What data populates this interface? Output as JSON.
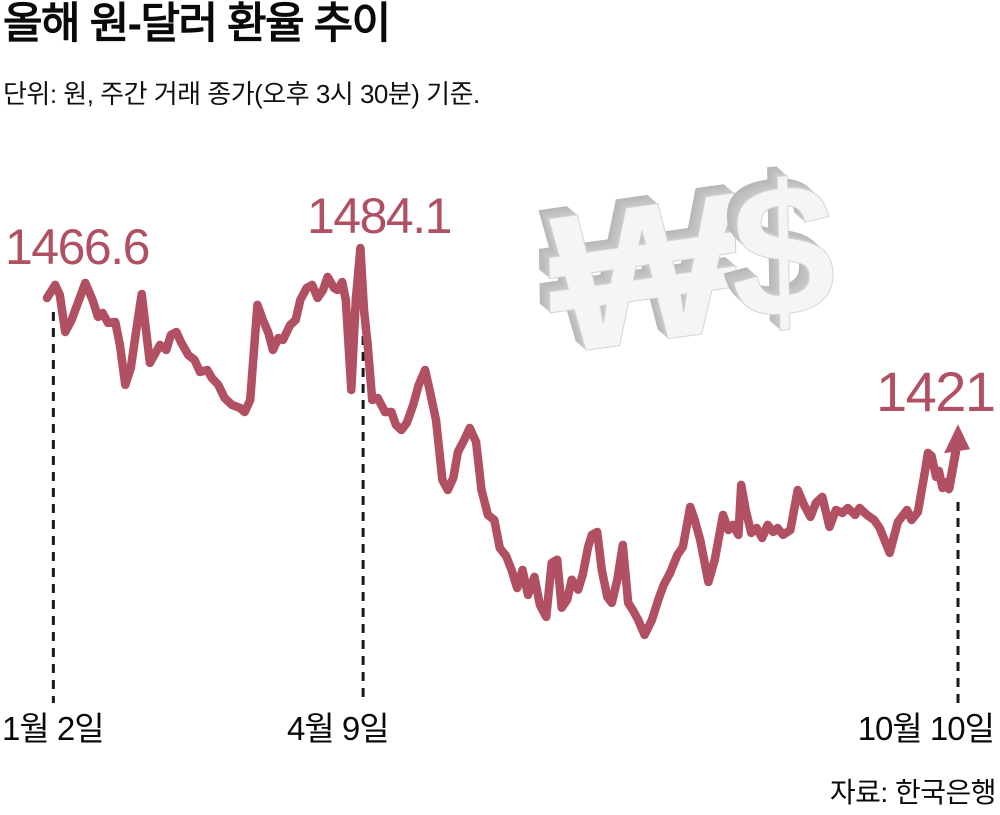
{
  "header": {
    "title": "올해 원-달러 환율 추이",
    "subtitle": "단위: 원, 주간 거래 종가(오후 3시 30분) 기준."
  },
  "decor": {
    "won_symbol": "₩",
    "dollar_symbol": "$"
  },
  "chart_data": {
    "type": "line",
    "title": "올해 원-달러 환율 추이",
    "unit_note": "단위: 원, 주간 거래 종가(오후 3시 30분) 기준.",
    "source": "자료: 한국은행",
    "ylabel": "원",
    "ylim": [
      1340,
      1490
    ],
    "grid": false,
    "line_color": "#b15062",
    "dash_guide_color": "#1a1a1a",
    "x_ticks": [
      {
        "label": "1월 2일",
        "t": 0.007
      },
      {
        "label": "4월 9일",
        "t": 0.347
      },
      {
        "label": "10월 10일",
        "t": 1.0
      }
    ],
    "annotations": [
      {
        "id": "start",
        "text": "1466.6",
        "t": 0.0,
        "value": 1466.6
      },
      {
        "id": "peak",
        "text": "1484.1",
        "t": 0.344,
        "value": 1484.1
      },
      {
        "id": "end",
        "text": "1421",
        "t": 1.0,
        "value": 1421
      }
    ],
    "series": [
      {
        "name": "원-달러 환율 (주간 거래 종가)",
        "points": [
          [
            0,
            1466.6
          ],
          [
            0.009,
            1471.2
          ],
          [
            0.014,
            1467.7
          ],
          [
            0.02,
            1454.7
          ],
          [
            0.027,
            1458.9
          ],
          [
            0.042,
            1471.9
          ],
          [
            0.05,
            1465.9
          ],
          [
            0.056,
            1460
          ],
          [
            0.061,
            1461.4
          ],
          [
            0.067,
            1457.9
          ],
          [
            0.075,
            1458.2
          ],
          [
            0.08,
            1450.2
          ],
          [
            0.086,
            1436.2
          ],
          [
            0.092,
            1442.1
          ],
          [
            0.098,
            1455.4
          ],
          [
            0.104,
            1468
          ],
          [
            0.113,
            1443.9
          ],
          [
            0.124,
            1450.2
          ],
          [
            0.131,
            1448.4
          ],
          [
            0.136,
            1453.7
          ],
          [
            0.142,
            1454.7
          ],
          [
            0.147,
            1451.2
          ],
          [
            0.155,
            1446.7
          ],
          [
            0.162,
            1444.9
          ],
          [
            0.168,
            1440.7
          ],
          [
            0.176,
            1441.4
          ],
          [
            0.181,
            1438.6
          ],
          [
            0.188,
            1436.2
          ],
          [
            0.195,
            1431.6
          ],
          [
            0.203,
            1429.2
          ],
          [
            0.212,
            1428.1
          ],
          [
            0.217,
            1426.7
          ],
          [
            0.223,
            1430.9
          ],
          [
            0.231,
            1464.2
          ],
          [
            0.237,
            1458.9
          ],
          [
            0.243,
            1454.4
          ],
          [
            0.248,
            1448.4
          ],
          [
            0.254,
            1452.6
          ],
          [
            0.259,
            1451.9
          ],
          [
            0.267,
            1457.2
          ],
          [
            0.273,
            1458.9
          ],
          [
            0.278,
            1465.9
          ],
          [
            0.285,
            1470.1
          ],
          [
            0.291,
            1471.2
          ],
          [
            0.297,
            1466.6
          ],
          [
            0.303,
            1469.4
          ],
          [
            0.308,
            1474
          ],
          [
            0.315,
            1470.1
          ],
          [
            0.319,
            1469.4
          ],
          [
            0.324,
            1472.2
          ],
          [
            0.328,
            1465.9
          ],
          [
            0.334,
            1434.4
          ],
          [
            0.339,
            1465.9
          ],
          [
            0.344,
            1484.1
          ],
          [
            0.348,
            1462.4
          ],
          [
            0.352,
            1450.2
          ],
          [
            0.357,
            1430.9
          ],
          [
            0.363,
            1431.6
          ],
          [
            0.371,
            1426.7
          ],
          [
            0.378,
            1426.7
          ],
          [
            0.383,
            1422.2
          ],
          [
            0.389,
            1420.4
          ],
          [
            0.395,
            1422.9
          ],
          [
            0.402,
            1429.2
          ],
          [
            0.408,
            1436.2
          ],
          [
            0.415,
            1441.4
          ],
          [
            0.42,
            1434.4
          ],
          [
            0.427,
            1423.9
          ],
          [
            0.434,
            1402.9
          ],
          [
            0.44,
            1399.4
          ],
          [
            0.446,
            1403.6
          ],
          [
            0.451,
            1412.7
          ],
          [
            0.458,
            1416.9
          ],
          [
            0.464,
            1421.1
          ],
          [
            0.471,
            1416.2
          ],
          [
            0.477,
            1399.4
          ],
          [
            0.484,
            1390.7
          ],
          [
            0.491,
            1388.9
          ],
          [
            0.497,
            1379.1
          ],
          [
            0.504,
            1376.3
          ],
          [
            0.51,
            1371.4
          ],
          [
            0.516,
            1365.1
          ],
          [
            0.522,
            1371.4
          ],
          [
            0.528,
            1362.7
          ],
          [
            0.535,
            1369
          ],
          [
            0.541,
            1359.2
          ],
          [
            0.548,
            1355
          ],
          [
            0.554,
            1373.9
          ],
          [
            0.56,
            1375
          ],
          [
            0.565,
            1358.2
          ],
          [
            0.571,
            1361
          ],
          [
            0.576,
            1368
          ],
          [
            0.583,
            1364.5
          ],
          [
            0.588,
            1369.7
          ],
          [
            0.594,
            1379.5
          ],
          [
            0.598,
            1383.7
          ],
          [
            0.604,
            1384.7
          ],
          [
            0.609,
            1371.4
          ],
          [
            0.615,
            1362
          ],
          [
            0.62,
            1359.9
          ],
          [
            0.626,
            1368
          ],
          [
            0.632,
            1380.2
          ],
          [
            0.638,
            1359.9
          ],
          [
            0.643,
            1357.4
          ],
          [
            0.649,
            1353.9
          ],
          [
            0.656,
            1348.7
          ],
          [
            0.664,
            1353.9
          ],
          [
            0.671,
            1361
          ],
          [
            0.677,
            1366.2
          ],
          [
            0.684,
            1370.4
          ],
          [
            0.692,
            1376.7
          ],
          [
            0.698,
            1379.5
          ],
          [
            0.706,
            1393.5
          ],
          [
            0.711,
            1388.9
          ],
          [
            0.717,
            1381.9
          ],
          [
            0.726,
            1367.2
          ],
          [
            0.733,
            1375
          ],
          [
            0.742,
            1390.7
          ],
          [
            0.748,
            1385.4
          ],
          [
            0.753,
            1387.2
          ],
          [
            0.759,
            1383.7
          ],
          [
            0.762,
            1401.2
          ],
          [
            0.767,
            1392.4
          ],
          [
            0.773,
            1384.4
          ],
          [
            0.779,
            1386.1
          ],
          [
            0.785,
            1382.6
          ],
          [
            0.791,
            1387.2
          ],
          [
            0.797,
            1384.7
          ],
          [
            0.802,
            1386.1
          ],
          [
            0.808,
            1383.7
          ],
          [
            0.816,
            1385.4
          ],
          [
            0.824,
            1399.4
          ],
          [
            0.831,
            1394.2
          ],
          [
            0.838,
            1390
          ],
          [
            0.844,
            1394.9
          ],
          [
            0.851,
            1397
          ],
          [
            0.859,
            1386.5
          ],
          [
            0.866,
            1392.4
          ],
          [
            0.873,
            1391.4
          ],
          [
            0.879,
            1393.1
          ],
          [
            0.887,
            1390.7
          ],
          [
            0.892,
            1393.1
          ],
          [
            0.9,
            1390.7
          ],
          [
            0.908,
            1388.9
          ],
          [
            0.914,
            1386.1
          ],
          [
            0.925,
            1377.4
          ],
          [
            0.934,
            1388.2
          ],
          [
            0.944,
            1392.4
          ],
          [
            0.949,
            1388.9
          ],
          [
            0.956,
            1391.7
          ],
          [
            0.964,
            1406.4
          ],
          [
            0.967,
            1412.4
          ],
          [
            0.971,
            1411.3
          ],
          [
            0.976,
            1404
          ],
          [
            0.979,
            1406.1
          ],
          [
            0.983,
            1400.1
          ],
          [
            0.987,
            1402.2
          ],
          [
            0.99,
            1399.7
          ]
        ],
        "end_arrow": {
          "t": 1.0,
          "value": 1421
        }
      }
    ]
  }
}
